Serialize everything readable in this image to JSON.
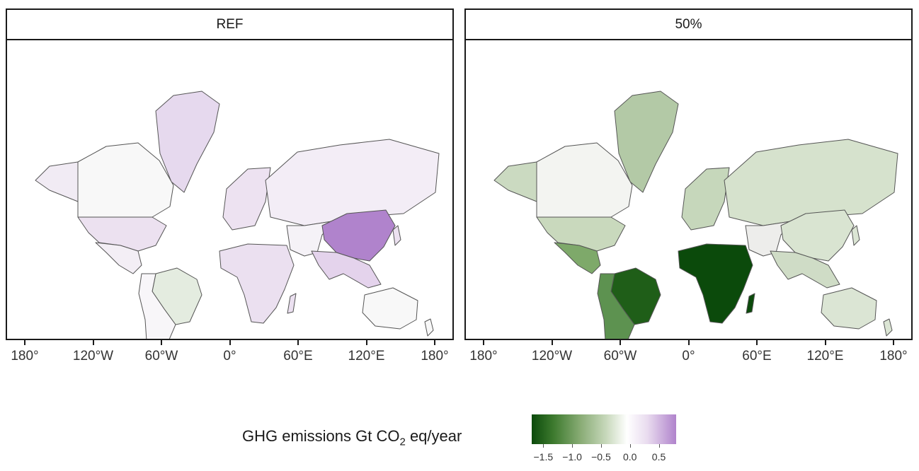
{
  "panels": [
    {
      "id": "ref",
      "title": "REF"
    },
    {
      "id": "p50",
      "title": "50%"
    }
  ],
  "x_axis": {
    "ticks": [
      {
        "lon": -180,
        "label": "180°"
      },
      {
        "lon": -120,
        "label": "120°W"
      },
      {
        "lon": -60,
        "label": "60°W"
      },
      {
        "lon": 0,
        "label": "0°"
      },
      {
        "lon": 60,
        "label": "60°E"
      },
      {
        "lon": 120,
        "label": "120°E"
      },
      {
        "lon": 180,
        "label": "180°"
      }
    ]
  },
  "legend": {
    "title_prefix": "GHG emissions Gt CO",
    "title_sub": "2",
    "title_suffix": " eq/year",
    "range": [
      -1.7,
      0.8
    ],
    "ticks": [
      {
        "value": -1.5,
        "label": "−1.5"
      },
      {
        "value": -1.0,
        "label": "−1.0"
      },
      {
        "value": -0.5,
        "label": "−0.5"
      },
      {
        "value": 0.0,
        "label": "0.0"
      },
      {
        "value": 0.5,
        "label": "0.5"
      }
    ]
  },
  "colors": {
    "border": "#555555",
    "strong_green": "#0b4a0b",
    "mid_green": "#3d7a2e",
    "light_green": "#c9d9bd",
    "neutral": "#f7f7f7",
    "light_purple": "#ece1f0",
    "strong_purple": "#b083cc"
  }
}
